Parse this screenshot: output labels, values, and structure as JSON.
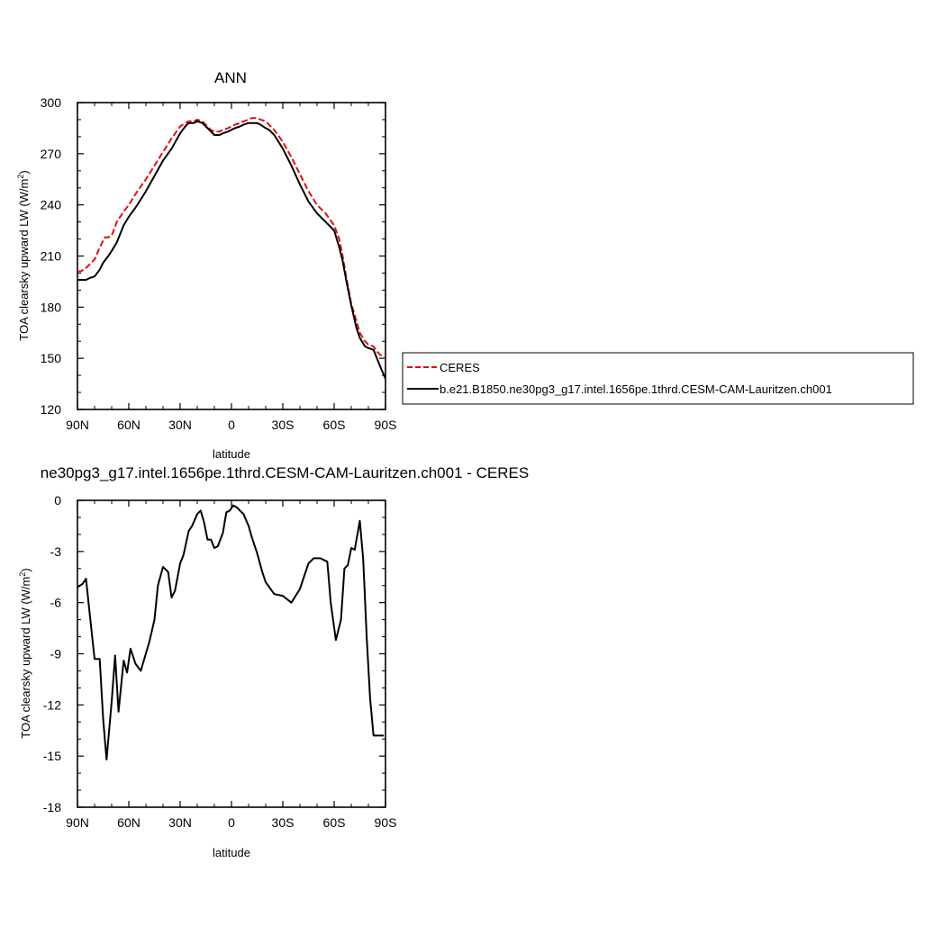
{
  "chart_data": [
    {
      "type": "line",
      "title": "ANN",
      "xlabel": "latitude",
      "ylabel": "TOA clearsky upward LW (W/m",
      "ylabel_sup": "2",
      "ylabel_end": ")",
      "xlim": [
        90,
        -90
      ],
      "ylim": [
        120,
        300
      ],
      "x_ticks": [
        90,
        60,
        30,
        0,
        -30,
        -60,
        -90
      ],
      "x_tick_labels": [
        "90N",
        "60N",
        "30N",
        "0",
        "30S",
        "60S",
        "90S"
      ],
      "y_ticks": [
        120,
        150,
        180,
        210,
        240,
        270,
        300
      ],
      "y_tick_labels": [
        "120",
        "150",
        "180",
        "210",
        "240",
        "270",
        "300"
      ],
      "grid": false,
      "legend_position": "right, outside plot",
      "series": [
        {
          "name": "CERES",
          "color": "#e01010",
          "dash": "dashed",
          "x": [
            90,
            88,
            85,
            80,
            77,
            74,
            72,
            70,
            67,
            63,
            60,
            55,
            50,
            45,
            40,
            35,
            30,
            27,
            25,
            22,
            20,
            17,
            15,
            12,
            10,
            7,
            5,
            2,
            0,
            -2,
            -5,
            -7,
            -10,
            -12,
            -15,
            -17,
            -20,
            -22,
            -25,
            -30,
            -35,
            -40,
            -45,
            -50,
            -55,
            -60,
            -63,
            -65,
            -67,
            -70,
            -73,
            -75,
            -78,
            -80,
            -83,
            -85,
            -87,
            -90
          ],
          "y": [
            201,
            201,
            203,
            208,
            215,
            221,
            221,
            222,
            230,
            236,
            240,
            248,
            255,
            263,
            271,
            279,
            286,
            288,
            289,
            289,
            290,
            289,
            287,
            284,
            283,
            283,
            284,
            285,
            286,
            287,
            288,
            289,
            290,
            291,
            291,
            290,
            289,
            287,
            284,
            277,
            268,
            258,
            248,
            240,
            235,
            228,
            220,
            210,
            198,
            182,
            172,
            165,
            160,
            158,
            157,
            154,
            152,
            150
          ]
        },
        {
          "name": "b.e21.B1850.ne30pg3_g17.intel.1656pe.1thrd.CESM-CAM-Lauritzen.ch001",
          "color": "#000000",
          "dash": "solid",
          "x": [
            90,
            87,
            85,
            83,
            80,
            77,
            75,
            72,
            70,
            67,
            65,
            63,
            60,
            55,
            50,
            45,
            40,
            35,
            30,
            27,
            25,
            22,
            20,
            17,
            15,
            12,
            10,
            7,
            5,
            2,
            0,
            -2,
            -5,
            -7,
            -10,
            -12,
            -15,
            -17,
            -20,
            -22,
            -25,
            -30,
            -35,
            -40,
            -45,
            -50,
            -55,
            -60,
            -63,
            -65,
            -67,
            -70,
            -73,
            -75,
            -78,
            -80,
            -83,
            -85,
            -87,
            -90
          ],
          "y": [
            196,
            196,
            196,
            197,
            198,
            202,
            206,
            210,
            213,
            218,
            223,
            228,
            233,
            240,
            248,
            257,
            266,
            273,
            282,
            286,
            288,
            288,
            289,
            288,
            286,
            283,
            281,
            281,
            282,
            283,
            284,
            285,
            286,
            287,
            288,
            288,
            288,
            287,
            285,
            284,
            281,
            273,
            263,
            252,
            242,
            235,
            230,
            225,
            215,
            207,
            196,
            181,
            168,
            162,
            157,
            156,
            155,
            150,
            145,
            138
          ]
        }
      ]
    },
    {
      "type": "line",
      "title": "ne30pg3_g17.intel.1656pe.1thrd.CESM-CAM-Lauritzen.ch001 - CERES",
      "xlabel": "latitude",
      "ylabel": "TOA clearsky upward LW (W/m",
      "ylabel_sup": "2",
      "ylabel_end": ")",
      "xlim": [
        90,
        -90
      ],
      "ylim": [
        -18,
        0
      ],
      "x_ticks": [
        90,
        60,
        30,
        0,
        -30,
        -60,
        -90
      ],
      "x_tick_labels": [
        "90N",
        "60N",
        "30N",
        "0",
        "30S",
        "60S",
        "90S"
      ],
      "y_ticks": [
        -18,
        -15,
        -12,
        -9,
        -6,
        -3,
        0
      ],
      "y_tick_labels": [
        "-18",
        "-15",
        "-12",
        "-9",
        "-6",
        "-3",
        "0"
      ],
      "grid": false,
      "series": [
        {
          "color": "#000000",
          "dash": "solid",
          "x": [
            90,
            87,
            85,
            83,
            80,
            77,
            75,
            73,
            70,
            68,
            66,
            63,
            61,
            59,
            56,
            53,
            48,
            45,
            43,
            40,
            37,
            35,
            33,
            30,
            28,
            25,
            23,
            20,
            18,
            16,
            14,
            12,
            10,
            8,
            5,
            3,
            1,
            -1,
            -3,
            -5,
            -7,
            -10,
            -12,
            -15,
            -18,
            -20,
            -25,
            -30,
            -35,
            -40,
            -45,
            -48,
            -52,
            -56,
            -58,
            -61,
            -64,
            -66,
            -68,
            -70,
            -72,
            -75,
            -77,
            -79,
            -81,
            -83,
            -85,
            -87,
            -89
          ],
          "y": [
            -5.1,
            -4.9,
            -4.6,
            -6.5,
            -9.3,
            -9.3,
            -12.8,
            -15.2,
            -11.8,
            -9.1,
            -12.4,
            -9.4,
            -10.1,
            -8.7,
            -9.6,
            -10.0,
            -8.3,
            -7.0,
            -5.0,
            -3.9,
            -4.2,
            -5.7,
            -5.3,
            -3.7,
            -3.2,
            -1.8,
            -1.5,
            -0.8,
            -0.6,
            -1.3,
            -2.3,
            -2.3,
            -2.8,
            -2.7,
            -1.9,
            -0.7,
            -0.6,
            -0.3,
            -0.4,
            -0.6,
            -0.8,
            -1.5,
            -2.2,
            -3.1,
            -4.2,
            -4.8,
            -5.5,
            -5.6,
            -6.0,
            -5.2,
            -3.7,
            -3.4,
            -3.4,
            -3.6,
            -6.0,
            -8.2,
            -7.0,
            -4.0,
            -3.8,
            -2.8,
            -2.9,
            -1.2,
            -3.5,
            -8.0,
            -11.6,
            -13.8,
            -13.8,
            -13.8,
            -13.8
          ]
        }
      ]
    }
  ]
}
